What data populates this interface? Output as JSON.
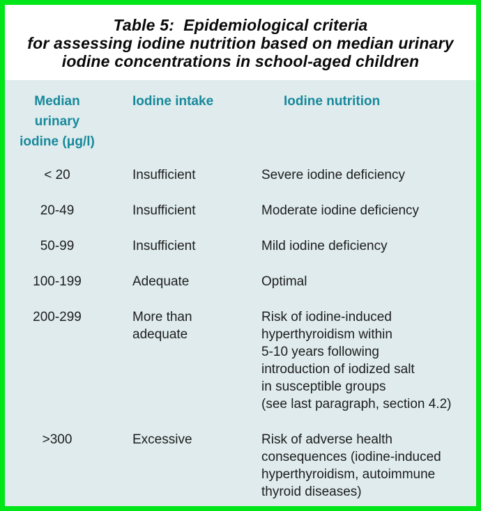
{
  "frame": {
    "border_color": "#00e619"
  },
  "title": {
    "lines": [
      "Table 5:  Epidemiological criteria",
      "for assessing iodine nutrition based on median urinary",
      "iodine concentrations in school-aged children"
    ]
  },
  "table": {
    "panel_background": "#dfebed",
    "header_color": "#17899b",
    "text_color": "#1d1d1d",
    "headers": {
      "median": "Median\nurinary\niodine (μg/l)",
      "intake": "Iodine intake",
      "nutrition": "Iodine nutrition"
    },
    "rows": [
      {
        "median": "< 20",
        "intake": "Insufficient",
        "nutrition": "Severe iodine deficiency"
      },
      {
        "median": "20-49",
        "intake": "Insufficient",
        "nutrition": "Moderate iodine deficiency"
      },
      {
        "median": "50-99",
        "intake": "Insufficient",
        "nutrition": "Mild iodine deficiency"
      },
      {
        "median": "100-199",
        "intake": "Adequate",
        "nutrition": "Optimal"
      },
      {
        "median": "200-299",
        "intake": "More than\nadequate",
        "nutrition": "Risk of iodine-induced\nhyperthyroidism within\n5-10 years following\nintroduction of iodized salt\nin susceptible groups\n(see last paragraph, section 4.2)"
      },
      {
        "median": ">300",
        "intake": "Excessive",
        "nutrition": "Risk of adverse health\nconsequences (iodine-induced\nhyperthyroidism, autoimmune\nthyroid diseases)"
      }
    ]
  }
}
